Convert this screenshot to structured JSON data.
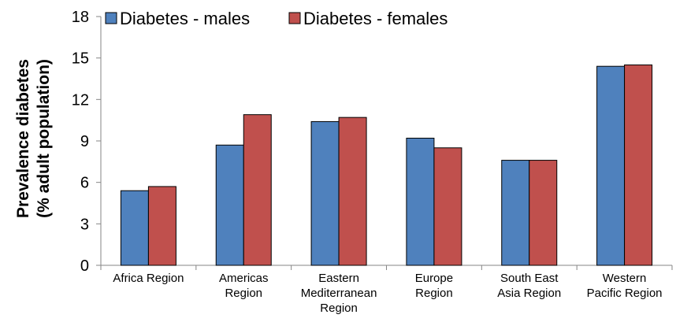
{
  "chart_data": {
    "type": "bar",
    "title": "",
    "xlabel": "",
    "ylabel_lines": [
      "Prevalence diabetes",
      "(% adult population)"
    ],
    "ylim": [
      0,
      18
    ],
    "yticks": [
      0,
      3,
      6,
      9,
      12,
      15,
      18
    ],
    "grid": false,
    "legend_position": "top",
    "categories": [
      [
        "Africa Region"
      ],
      [
        "Americas",
        "Region"
      ],
      [
        "Eastern",
        "Mediterranean",
        "Region"
      ],
      [
        "Europe",
        "Region"
      ],
      [
        "South East",
        "Asia Region"
      ],
      [
        "Western",
        "Pacific Region"
      ]
    ],
    "series": [
      {
        "name": "Diabetes - males",
        "color": "#4F81BD",
        "values": [
          5.4,
          8.7,
          10.4,
          9.2,
          7.6,
          14.4
        ]
      },
      {
        "name": "Diabetes - females",
        "color": "#C0504D",
        "values": [
          5.7,
          10.9,
          10.7,
          8.5,
          7.6,
          14.5
        ]
      }
    ]
  }
}
